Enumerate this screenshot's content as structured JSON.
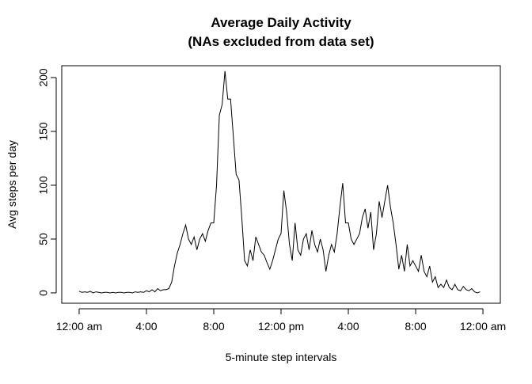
{
  "chart_data": {
    "type": "line",
    "title": "Average Daily Activity",
    "subtitle": "(NAs excluded from data set)",
    "x_label": "5-minute step intervals",
    "y_label": "Avg steps per day",
    "x": [
      0,
      10,
      20,
      30,
      40,
      50,
      60,
      70,
      80,
      90,
      100,
      110,
      120,
      130,
      140,
      150,
      160,
      170,
      180,
      190,
      200,
      210,
      220,
      230,
      240,
      250,
      260,
      270,
      280,
      290,
      300,
      310,
      320,
      330,
      340,
      350,
      360,
      370,
      380,
      390,
      400,
      410,
      420,
      430,
      440,
      450,
      460,
      470,
      480,
      490,
      500,
      510,
      520,
      530,
      540,
      550,
      560,
      570,
      580,
      590,
      600,
      610,
      620,
      630,
      640,
      650,
      660,
      670,
      680,
      690,
      700,
      710,
      720,
      730,
      740,
      750,
      760,
      770,
      780,
      790,
      800,
      810,
      820,
      830,
      840,
      850,
      860,
      870,
      880,
      890,
      900,
      910,
      920,
      930,
      940,
      950,
      960,
      970,
      980,
      990,
      1000,
      1010,
      1020,
      1030,
      1040,
      1050,
      1060,
      1070,
      1080,
      1090,
      1100,
      1110,
      1120,
      1130,
      1140,
      1150,
      1160,
      1170,
      1180,
      1190,
      1200,
      1210,
      1220,
      1230,
      1240,
      1250,
      1260,
      1270,
      1280,
      1290,
      1300,
      1310,
      1320,
      1330,
      1340,
      1350,
      1360,
      1370,
      1380,
      1390,
      1400,
      1410,
      1420,
      1430
    ],
    "series": [
      {
        "name": "Avg steps",
        "color": "#000000",
        "values": [
          1.5,
          0.5,
          1,
          0.5,
          1.5,
          0,
          1,
          0.5,
          0,
          0.5,
          0.5,
          0,
          0.5,
          0,
          0.5,
          0.5,
          0,
          0.5,
          0.5,
          0,
          1,
          0.5,
          1,
          0.5,
          2,
          1,
          3,
          1,
          4,
          2,
          3,
          3,
          4,
          10,
          25,
          37,
          45,
          55,
          63,
          50,
          45,
          52,
          40,
          50,
          55,
          48,
          58,
          65,
          65,
          100,
          165,
          175,
          206,
          180,
          180,
          145,
          110,
          105,
          70,
          30,
          25,
          40,
          30,
          52,
          45,
          38,
          35,
          28,
          22,
          30,
          40,
          50,
          55,
          95,
          75,
          45,
          30,
          65,
          40,
          35,
          50,
          55,
          40,
          58,
          45,
          38,
          50,
          40,
          20,
          35,
          45,
          38,
          55,
          80,
          102,
          65,
          65,
          50,
          45,
          50,
          55,
          70,
          78,
          60,
          75,
          40,
          55,
          85,
          70,
          85,
          100,
          80,
          65,
          45,
          22,
          35,
          20,
          45,
          25,
          30,
          25,
          20,
          35,
          20,
          15,
          25,
          10,
          15,
          5,
          8,
          5,
          12,
          5,
          3,
          8,
          3,
          2,
          6,
          3,
          2,
          4,
          1,
          0,
          1
        ]
      }
    ],
    "xlim": [
      -62,
      1502
    ],
    "ylim": [
      -9.6,
      211
    ],
    "xticks": [
      {
        "value": 0,
        "label": "12:00 am"
      },
      {
        "value": 240,
        "label": "4:00"
      },
      {
        "value": 480,
        "label": "8:00"
      },
      {
        "value": 720,
        "label": "12:00 pm"
      },
      {
        "value": 960,
        "label": "4:00"
      },
      {
        "value": 1200,
        "label": "8:00"
      },
      {
        "value": 1440,
        "label": "12:00 am"
      }
    ],
    "yticks": [
      0,
      50,
      100,
      150,
      200
    ]
  }
}
